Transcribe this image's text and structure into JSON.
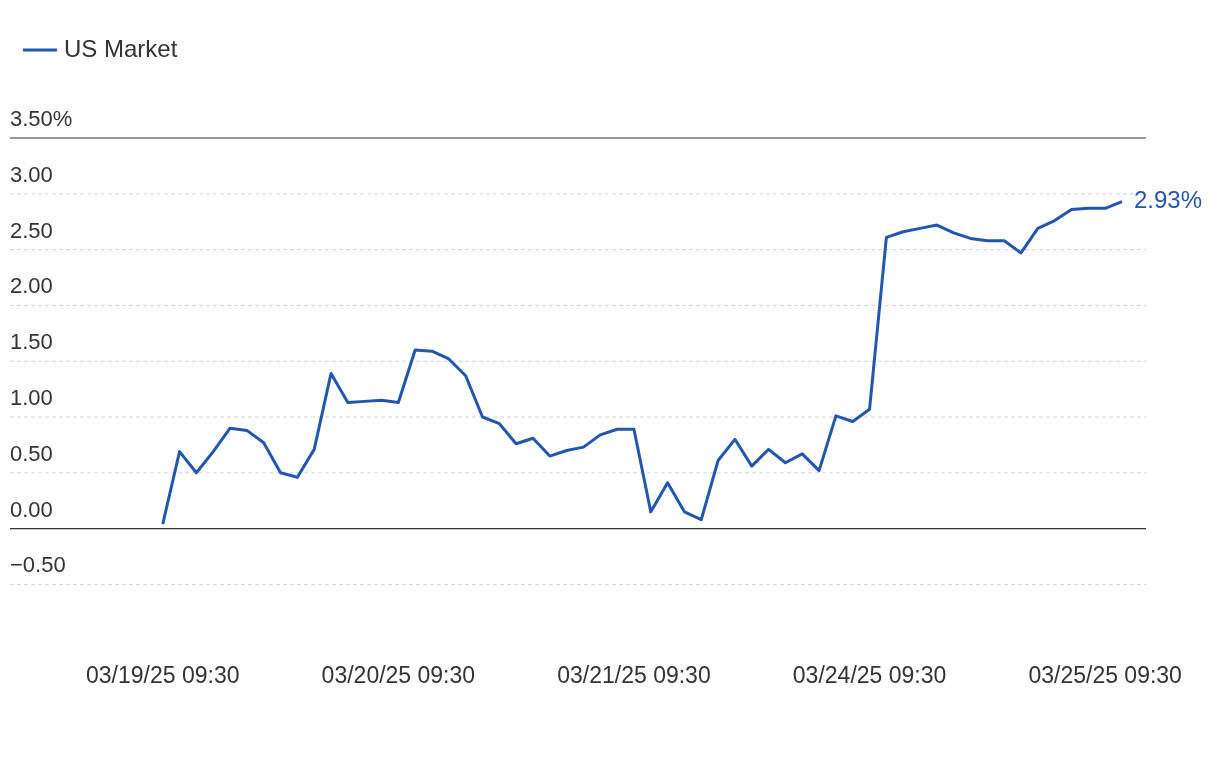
{
  "chart_data": {
    "type": "line",
    "legend": "top left",
    "grid": "y",
    "marker": "none",
    "line_style": "solid",
    "categories": [
      "03/19/25 09:30",
      null,
      null,
      null,
      null,
      null,
      null,
      null,
      null,
      null,
      null,
      null,
      null,
      null,
      "03/20/25 09:30",
      null,
      null,
      null,
      null,
      null,
      null,
      null,
      null,
      null,
      null,
      null,
      null,
      null,
      "03/21/25 09:30",
      null,
      null,
      null,
      null,
      null,
      null,
      null,
      null,
      null,
      null,
      null,
      null,
      null,
      "03/24/25 09:30",
      null,
      null,
      null,
      null,
      null,
      null,
      null,
      null,
      null,
      null,
      null,
      null,
      null,
      "03/25/25 09:30",
      null
    ],
    "ylim": [
      -0.5,
      3.5
    ],
    "yticks": [
      {
        "value": -0.5,
        "label": "−0.50"
      },
      {
        "value": 0,
        "label": "0.00"
      },
      {
        "value": 0.5,
        "label": "0.50"
      },
      {
        "value": 1,
        "label": "1.00"
      },
      {
        "value": 1.5,
        "label": "1.50"
      },
      {
        "value": 2,
        "label": "2.00"
      },
      {
        "value": 2.5,
        "label": "2.50"
      },
      {
        "value": 3,
        "label": "3.00"
      },
      {
        "value": 3.5,
        "label": "3.50%"
      }
    ],
    "ref_lines": [
      {
        "axis": "y",
        "value": 0,
        "color": "#333333"
      }
    ],
    "series": [
      {
        "name": "US Market",
        "color": "#2356b0",
        "values": [
          0.04,
          0.69,
          0.5,
          0.69,
          0.9,
          0.88,
          0.77,
          0.5,
          0.46,
          0.71,
          1.39,
          1.13,
          1.14,
          1.15,
          1.13,
          1.6,
          1.59,
          1.52,
          1.37,
          1.0,
          0.94,
          0.76,
          0.81,
          0.65,
          0.7,
          0.73,
          0.84,
          0.89,
          0.89,
          0.15,
          0.41,
          0.15,
          0.08,
          0.61,
          0.8,
          0.56,
          0.71,
          0.59,
          0.67,
          0.52,
          1.01,
          0.96,
          1.07,
          2.61,
          2.66,
          2.69,
          2.72,
          2.65,
          2.6,
          2.58,
          2.58,
          2.47,
          2.69,
          2.76,
          2.86,
          2.87,
          2.87,
          2.93
        ],
        "value_labels": [
          null,
          null,
          null,
          null,
          null,
          null,
          null,
          null,
          null,
          null,
          null,
          null,
          null,
          null,
          null,
          null,
          null,
          null,
          null,
          null,
          null,
          null,
          null,
          null,
          null,
          null,
          null,
          null,
          null,
          null,
          null,
          null,
          null,
          null,
          null,
          null,
          null,
          null,
          null,
          null,
          null,
          null,
          null,
          null,
          null,
          null,
          null,
          null,
          null,
          null,
          null,
          null,
          null,
          null,
          null,
          null,
          null,
          "2.93%"
        ]
      }
    ]
  }
}
